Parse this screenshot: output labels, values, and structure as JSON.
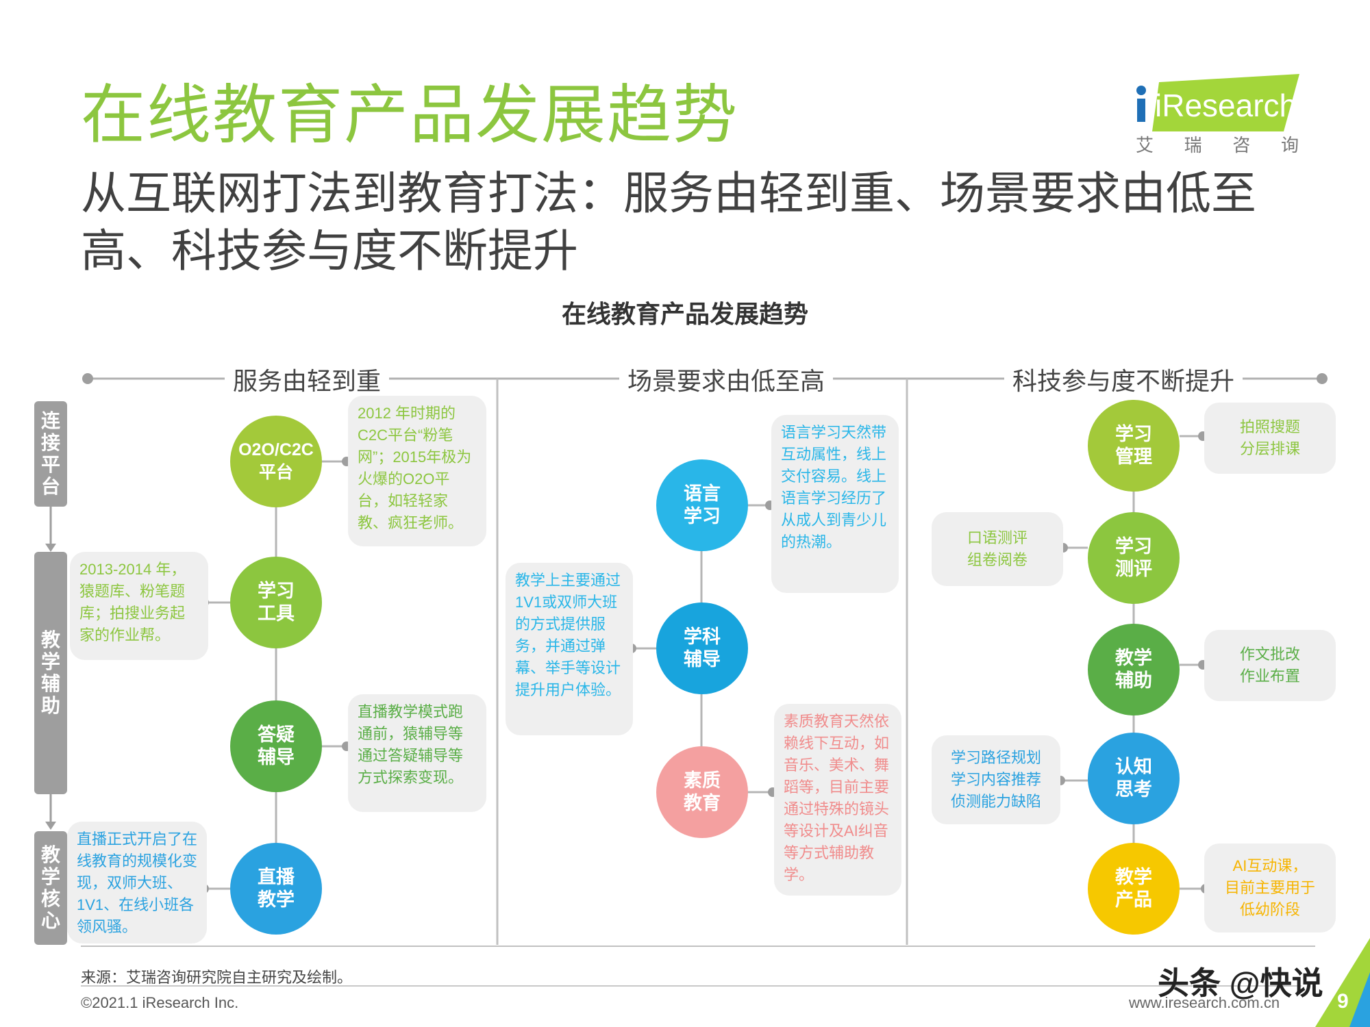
{
  "header": {
    "title": "在线教育产品发展趋势",
    "subtitle": "从互联网打法到教育打法：服务由轻到重、场景要求由低至高、科技参与度不断提升",
    "logo_text": "iResearch",
    "logo_cn": [
      "艾",
      "瑞",
      "咨",
      "询"
    ]
  },
  "diagram": {
    "title": "在线教育产品发展趋势",
    "sections": [
      "服务由轻到重",
      "场景要求由低至高",
      "科技参与度不断提升"
    ],
    "side_labels": [
      "连接平台",
      "教学辅助",
      "教学核心"
    ],
    "col1": {
      "nodes": [
        "O2O/C2C\n平台",
        "学习\n工具",
        "答疑\n辅导",
        "直播\n教学"
      ],
      "notes": [
        "2012 年时期的C2C平台“粉笔网”；2015年极为火爆的O2O平台，如轻轻家教、疯狂老师。",
        "2013-2014 年，猿题库、粉笔题库；拍搜业务起家的作业帮。",
        "直播教学模式跑通前，猿辅导等通过答疑辅导等方式探索变现。",
        "直播正式开启了在线教育的规模化变现，双师大班、1V1、在线小班各领风骚。"
      ]
    },
    "col2": {
      "nodes": [
        "语言\n学习",
        "学科\n辅导",
        "素质\n教育"
      ],
      "notes": [
        "语言学习天然带互动属性，线上交付容易。线上语言学习经历了从成人到青少儿的热潮。",
        "教学上主要通过1V1或双师大班的方式提供服务，并通过弹幕、举手等设计提升用户体验。",
        "素质教育天然依赖线下互动，如音乐、美术、舞蹈等，目前主要通过特殊的镜头等设计及AI纠音等方式辅助教学。"
      ]
    },
    "col3": {
      "nodes": [
        "学习\n管理",
        "学习\n测评",
        "教学\n辅助",
        "认知\n思考",
        "教学\n产品"
      ],
      "notes": [
        "拍照搜题\n分层排课",
        "口语测评\n组卷阅卷",
        "作文批改\n作业布置",
        "学习路径规划\n学习内容推荐\n侦测能力缺陷",
        "AI互动课，\n目前主要用于\n低幼阶段"
      ]
    }
  },
  "footer": {
    "source": "来源：艾瑞咨询研究院自主研究及绘制。",
    "copyright": "©2021.1 iResearch Inc.",
    "website": "www.iresearch.com.cn",
    "watermark": "头条 @快说",
    "page": "9"
  },
  "colors": {
    "green_light": "#a3c93a",
    "green_mid": "#8cc63f",
    "green_dark": "#5aae47",
    "blue": "#2aa2e0",
    "cyan": "#29b6e8",
    "pink": "#f4a0a0",
    "yellow": "#f6c800",
    "gray": "#9e9e9e"
  }
}
